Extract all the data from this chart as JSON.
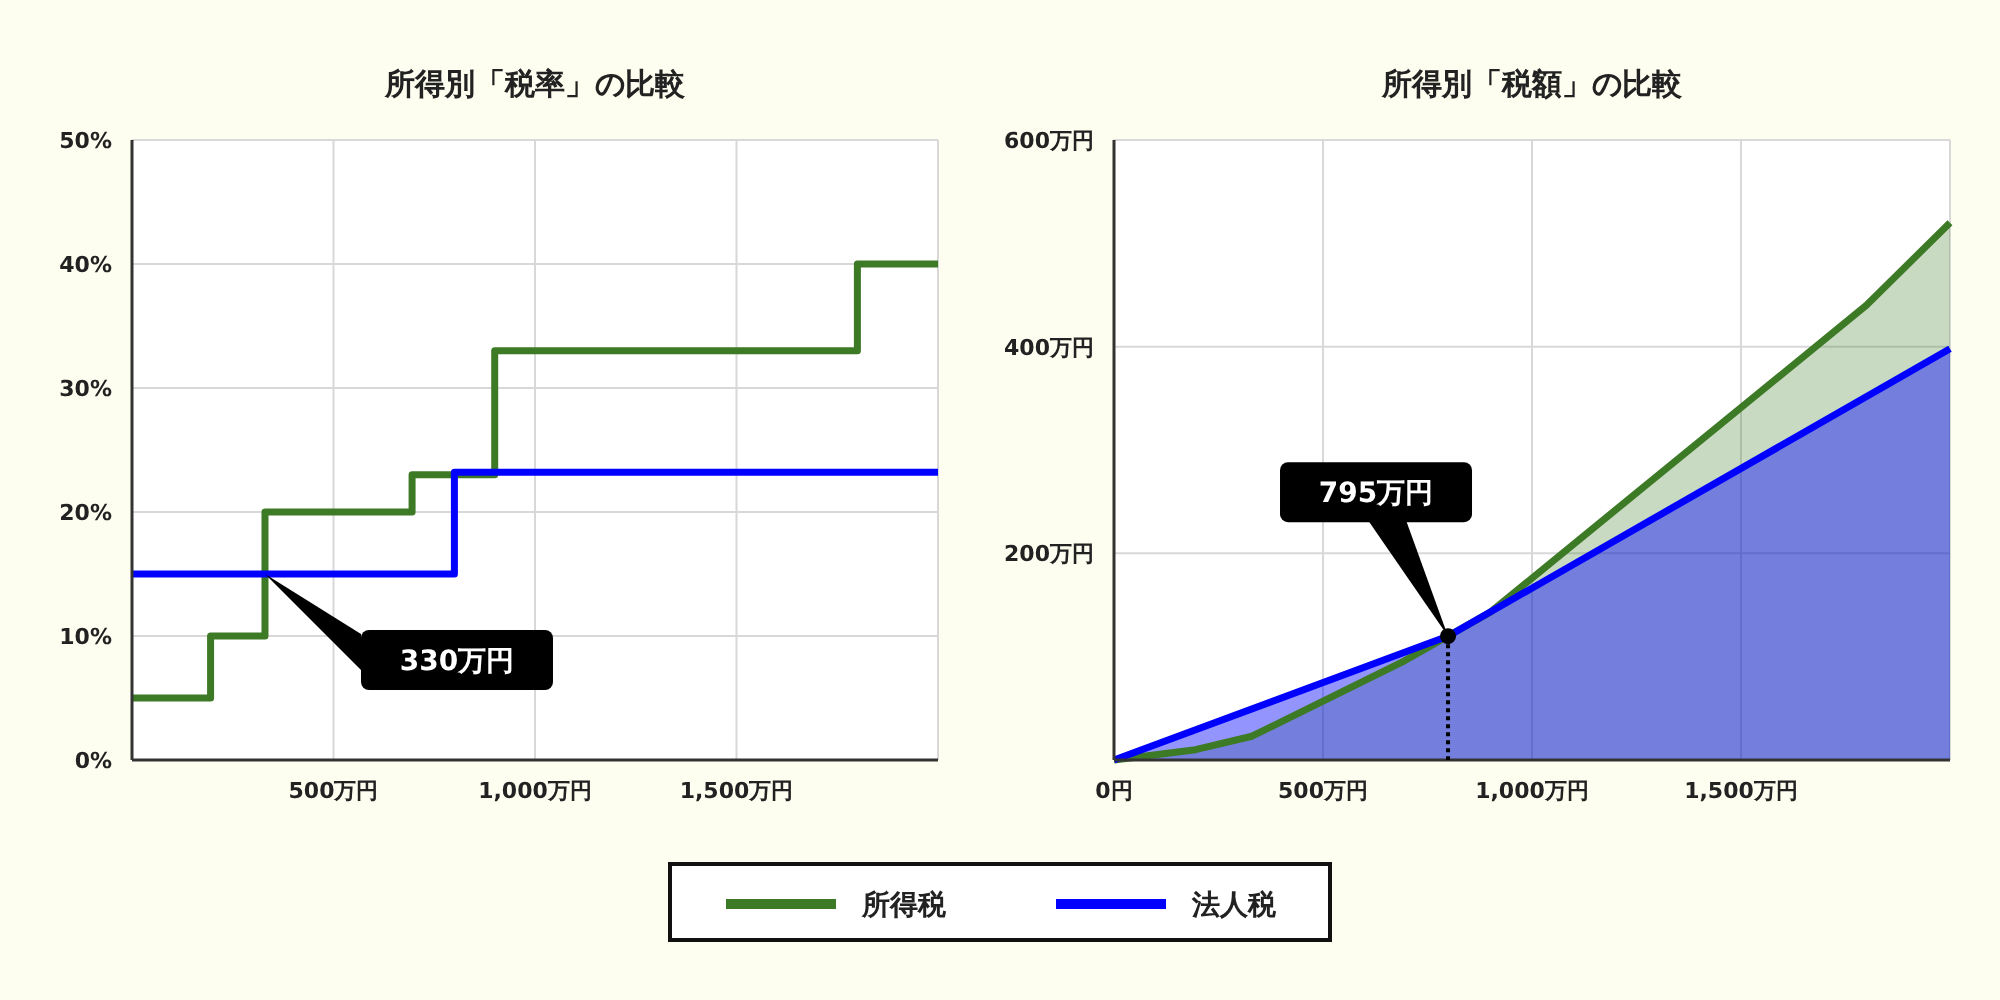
{
  "chart_data": [
    {
      "type": "step",
      "title": "所得別「税率」の比較",
      "xlim": [
        0,
        2000
      ],
      "xticks": [
        {
          "value": 500,
          "label": "500万円"
        },
        {
          "value": 1000,
          "label": "1,000万円"
        },
        {
          "value": 1500,
          "label": "1,500万円"
        }
      ],
      "ylim": [
        0,
        50
      ],
      "yticks": [
        {
          "value": 0,
          "label": "0%"
        },
        {
          "value": 10,
          "label": "10%"
        },
        {
          "value": 20,
          "label": "20%"
        },
        {
          "value": 30,
          "label": "30%"
        },
        {
          "value": 40,
          "label": "40%"
        },
        {
          "value": 50,
          "label": "50%"
        }
      ],
      "grid": true,
      "legend": "bottom",
      "series": [
        {
          "name": "所得税",
          "color": "#3d7a26",
          "x": [
            0,
            195,
            330,
            695,
            900,
            1800,
            2000
          ],
          "values": [
            5,
            10,
            20,
            23,
            33,
            40,
            40
          ]
        },
        {
          "name": "法人税",
          "color": "#0000ff",
          "x": [
            0,
            800,
            2000
          ],
          "values": [
            15,
            23.2,
            23.2
          ]
        }
      ],
      "annotations": [
        "330万円"
      ]
    },
    {
      "type": "area",
      "title": "所得別「税額」の比較",
      "xlim": [
        0,
        2000
      ],
      "xticks": [
        {
          "value": 0,
          "label": "0円"
        },
        {
          "value": 500,
          "label": "500万円"
        },
        {
          "value": 1000,
          "label": "1,000万円"
        },
        {
          "value": 1500,
          "label": "1,500万円"
        }
      ],
      "ylim": [
        0,
        600
      ],
      "yticks": [
        {
          "value": 200,
          "label": "200万円"
        },
        {
          "value": 400,
          "label": "400万円"
        },
        {
          "value": 600,
          "label": "600万円"
        }
      ],
      "grid": true,
      "series": [
        {
          "name": "所得税",
          "color": "#3d7a26",
          "x": [
            0,
            195,
            330,
            695,
            900,
            1800,
            2000
          ],
          "values": [
            0,
            10,
            23,
            96,
            143,
            440,
            520
          ]
        },
        {
          "name": "法人税",
          "color": "#0000ff",
          "x": [
            0,
            800,
            2000
          ],
          "values": [
            0,
            120,
            398
          ]
        }
      ],
      "annotations": [
        "795万円"
      ]
    }
  ]
}
